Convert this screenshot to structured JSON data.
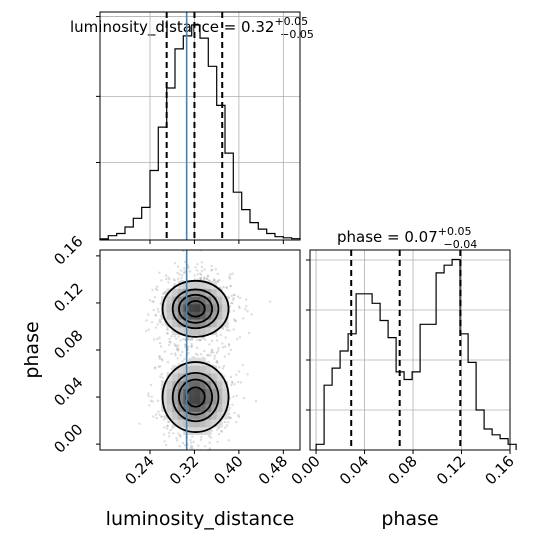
{
  "chart_data": {
    "type": "corner",
    "parameters": [
      "luminosity_distance",
      "phase"
    ],
    "truth": {
      "luminosity_distance": 0.306,
      "phase": null
    },
    "truth_color": "#4682b4",
    "panels": [
      {
        "kind": "histogram",
        "parameter": "luminosity_distance",
        "title_main": "luminosity_distance = 0.32",
        "title_sup": "+0.05",
        "title_sub": "−0.05",
        "xlim": [
          0.15,
          0.51
        ],
        "xticks": [
          0.24,
          0.32,
          0.4,
          0.48
        ],
        "ylim": [
          0,
          1
        ],
        "bin_edges": [
          0.15,
          0.165,
          0.18,
          0.195,
          0.21,
          0.225,
          0.24,
          0.255,
          0.27,
          0.285,
          0.3,
          0.315,
          0.33,
          0.345,
          0.36,
          0.375,
          0.39,
          0.405,
          0.42,
          0.435,
          0.45,
          0.465,
          0.48,
          0.495,
          0.51
        ],
        "counts": [
          0.005,
          0.02,
          0.03,
          0.06,
          0.1,
          0.15,
          0.32,
          0.52,
          0.7,
          0.88,
          0.94,
          0.99,
          0.93,
          0.8,
          0.62,
          0.4,
          0.22,
          0.14,
          0.08,
          0.05,
          0.03,
          0.015,
          0.01,
          0.006
        ],
        "quantiles": [
          0.27,
          0.32,
          0.37
        ]
      },
      {
        "kind": "2d",
        "x_parameter": "luminosity_distance",
        "y_parameter": "phase",
        "xlim": [
          0.15,
          0.51
        ],
        "ylim": [
          -0.005,
          0.165
        ],
        "xticks": [
          0.24,
          0.32,
          0.4,
          0.48
        ],
        "yticks": [
          0.0,
          0.04,
          0.08,
          0.12,
          0.16
        ],
        "xlabel": "luminosity_distance",
        "ylabel": "phase",
        "modes": [
          {
            "mx": 0.322,
            "my": 0.115,
            "sx": 0.03,
            "sy": 0.012
          },
          {
            "mx": 0.322,
            "my": 0.04,
            "sx": 0.03,
            "sy": 0.015
          }
        ]
      },
      {
        "kind": "histogram",
        "parameter": "phase",
        "title_main": "phase = 0.07",
        "title_sup": "+0.05",
        "title_sub": "−0.04",
        "xlim": [
          -0.005,
          0.16
        ],
        "xticks": [
          0.0,
          0.04,
          0.08,
          0.12,
          0.16
        ],
        "xlabel": "phase",
        "ylim": [
          0,
          1
        ],
        "bin_edges": [
          0.0,
          0.0066,
          0.0132,
          0.0198,
          0.0264,
          0.033,
          0.0396,
          0.0462,
          0.0528,
          0.0594,
          0.066,
          0.0726,
          0.0792,
          0.0858,
          0.0924,
          0.099,
          0.1056,
          0.1122,
          0.1188,
          0.1254,
          0.132,
          0.1386,
          0.1452,
          0.1518,
          0.1584,
          0.165
        ],
        "counts": [
          0.03,
          0.34,
          0.43,
          0.52,
          0.61,
          0.82,
          0.82,
          0.77,
          0.68,
          0.59,
          0.41,
          0.37,
          0.41,
          0.66,
          0.66,
          0.93,
          0.97,
          1.0,
          0.61,
          0.46,
          0.21,
          0.11,
          0.08,
          0.06,
          0.03
        ],
        "quantiles": [
          0.029,
          0.069,
          0.119
        ]
      }
    ]
  }
}
